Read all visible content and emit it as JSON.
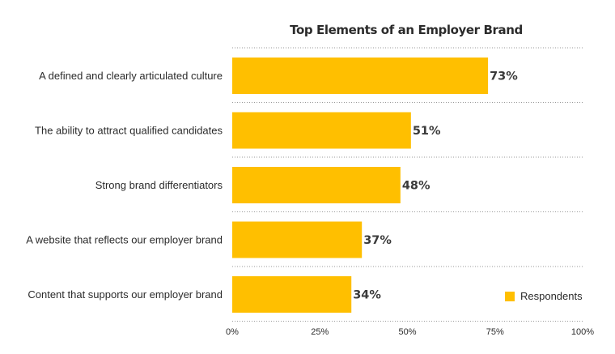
{
  "chart_data": {
    "type": "bar",
    "orientation": "horizontal",
    "title": "Top Elements of an Employer Brand",
    "categories": [
      "A defined and clearly articulated culture",
      "The ability to attract qualified candidates",
      "Strong brand differentiators",
      "A website that reflects our employer brand",
      "Content that supports our employer brand"
    ],
    "series": [
      {
        "name": "Respondents",
        "values": [
          73,
          51,
          48,
          37,
          34
        ],
        "value_labels": [
          "73%",
          "51%",
          "48%",
          "37%",
          "34%"
        ],
        "color": "#FFBF00"
      }
    ],
    "xlim": [
      0,
      100
    ],
    "xticks": [
      0,
      25,
      50,
      75,
      100
    ],
    "xtick_labels": [
      "0%",
      "25%",
      "50%",
      "75%",
      "100%"
    ],
    "xlabel": "",
    "ylabel": "",
    "grid": true,
    "legend_position": "bottom-right"
  }
}
